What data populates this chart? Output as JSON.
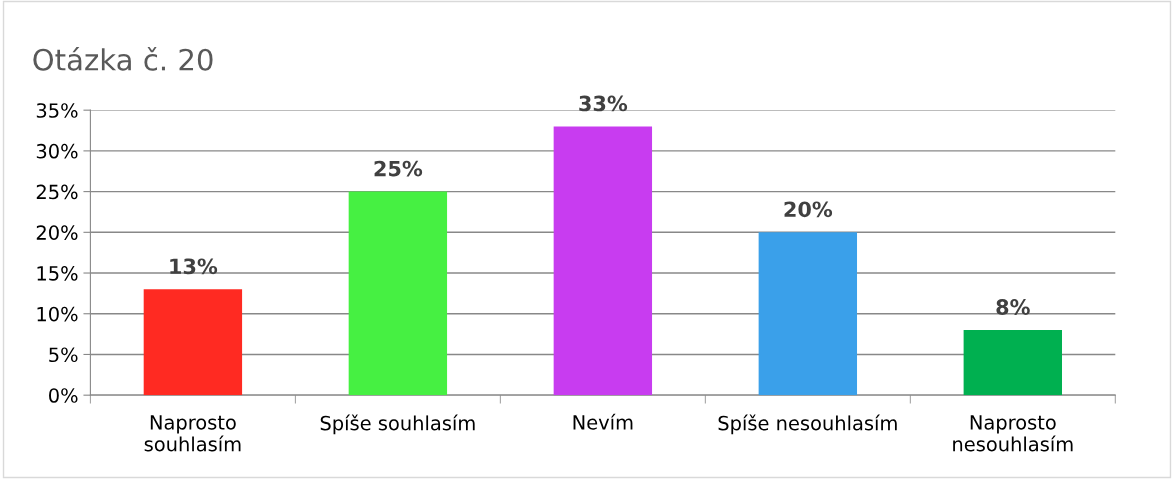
{
  "chart_data": {
    "type": "bar",
    "title": "Otázka č. 20",
    "categories": [
      "Naprosto\nsouhlasím",
      "Spíše souhlasím",
      "Nevím",
      "Spíše nesouhlasím",
      "Naprosto\nnesouhlasím"
    ],
    "values": [
      13,
      25,
      33,
      20,
      8
    ],
    "colors": [
      "#ff2a22",
      "#46f042",
      "#c83cf0",
      "#3aa0ea",
      "#00b050"
    ],
    "value_labels": [
      "13%",
      "25%",
      "33%",
      "20%",
      "8%"
    ],
    "ylim": [
      0,
      35
    ],
    "yticks": [
      {
        "value": 0,
        "label": "0%"
      },
      {
        "value": 5,
        "label": "5%"
      },
      {
        "value": 10,
        "label": "10%"
      },
      {
        "value": 15,
        "label": "15%"
      },
      {
        "value": 20,
        "label": "20%"
      },
      {
        "value": 25,
        "label": "25%"
      },
      {
        "value": 30,
        "label": "30%"
      },
      {
        "value": 35,
        "label": "35%"
      }
    ],
    "grid": "y",
    "legend": false
  }
}
